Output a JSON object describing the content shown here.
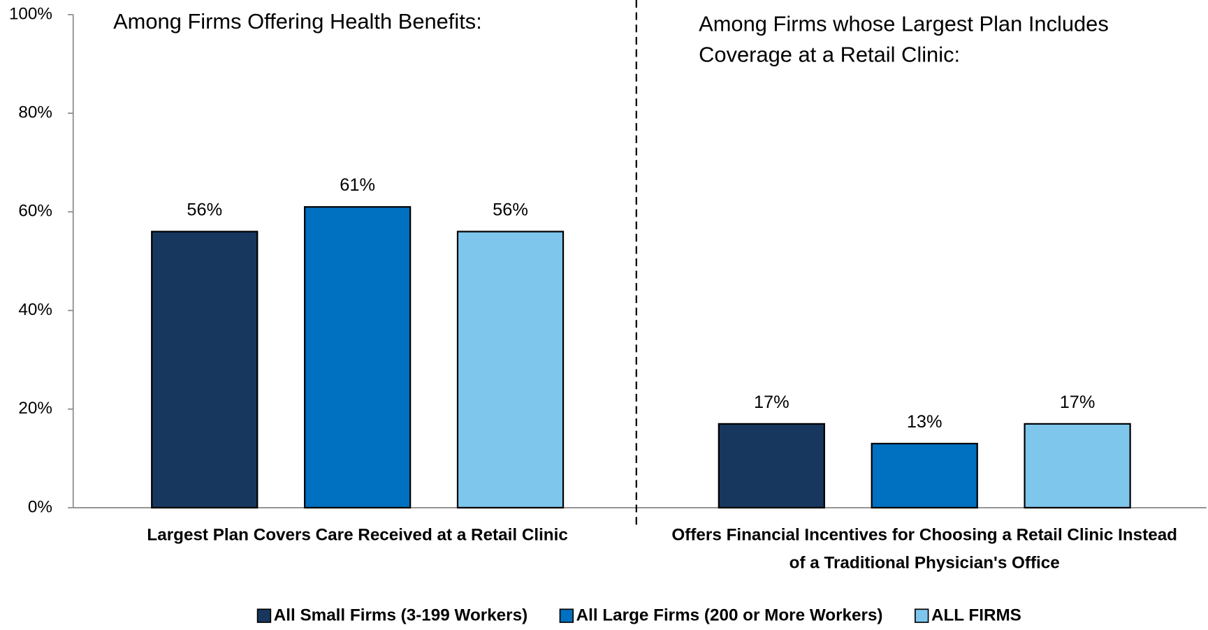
{
  "chart_data": {
    "type": "bar",
    "annotations": [
      "Among Firms Offering Health Benefits:",
      "Among Firms whose Largest Plan Includes Coverage at a Retail Clinic:"
    ],
    "categories": [
      "Largest Plan Covers Care Received at a Retail Clinic",
      "Offers Financial Incentives for Choosing a Retail Clinic Instead of a Traditional Physician's Office"
    ],
    "series": [
      {
        "name": "All Small Firms (3-199 Workers)",
        "color": "#17375e",
        "values": [
          56,
          17
        ],
        "value_labels": [
          "56%",
          "17%"
        ]
      },
      {
        "name": "All Large Firms (200 or More Workers)",
        "color": "#0070c0",
        "values": [
          61,
          13
        ],
        "value_labels": [
          "61%",
          "13%"
        ]
      },
      {
        "name": "ALL FIRMS",
        "color": "#7fc6ec",
        "values": [
          56,
          17
        ],
        "value_labels": [
          "56%",
          "17%"
        ]
      }
    ],
    "ylim": [
      0,
      100
    ],
    "yticks": [
      {
        "value": 0,
        "label": "0%"
      },
      {
        "value": 20,
        "label": "20%"
      },
      {
        "value": 40,
        "label": "40%"
      },
      {
        "value": 60,
        "label": "60%"
      },
      {
        "value": 80,
        "label": "80%"
      },
      {
        "value": 100,
        "label": "100%"
      }
    ],
    "legend": "bottom"
  }
}
